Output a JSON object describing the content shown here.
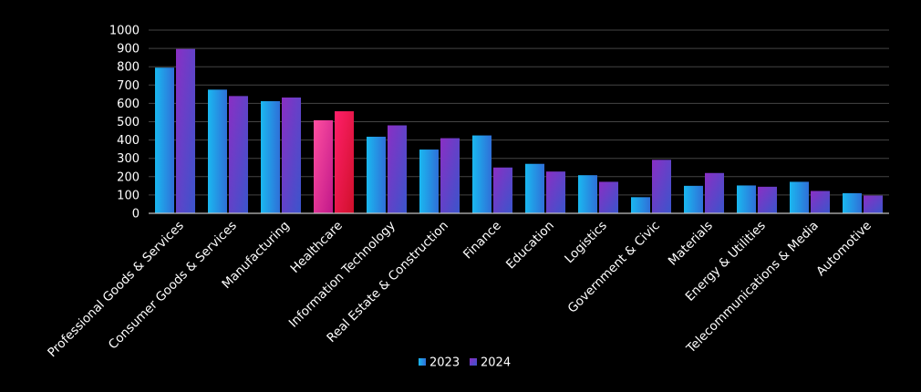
{
  "chart_data": {
    "type": "bar",
    "title": "",
    "xlabel": "",
    "ylabel": "",
    "ylim": [
      0,
      1000
    ],
    "yticks": [
      0,
      100,
      200,
      300,
      400,
      500,
      600,
      700,
      800,
      900,
      1000
    ],
    "grid": true,
    "legend_position": "bottom",
    "categories": [
      "Professional Goods & Services",
      "Consumer Goods & Services",
      "Manufacturing",
      "Healthcare",
      "Information Technology",
      "Real Estate & Construction",
      "Finance",
      "Education",
      "Logistics",
      "Government & Civic",
      "Materials",
      "Energy & Utilities",
      "Telecommunications & Media",
      "Automotive"
    ],
    "series": [
      {
        "name": "2023",
        "values": [
          795,
          675,
          612,
          508,
          418,
          348,
          425,
          270,
          208,
          88,
          150,
          152,
          172,
          110
        ]
      },
      {
        "name": "2024",
        "values": [
          897,
          640,
          632,
          557,
          480,
          410,
          250,
          228,
          172,
          292,
          220,
          145,
          122,
          97
        ]
      }
    ],
    "highlight_category": "Healthcare",
    "colors": {
      "background": "#000000",
      "grid": "#444444",
      "axis": "#bfbfbf",
      "series_2023": [
        "#1ab8f0",
        "#2f6fd8"
      ],
      "series_2024": [
        "#8a2fc4",
        "#3a55cc"
      ],
      "highlight_2023": [
        "#ff4fa0",
        "#c0188a"
      ],
      "highlight_2024": [
        "#ff1f6a",
        "#d0102a"
      ]
    }
  }
}
